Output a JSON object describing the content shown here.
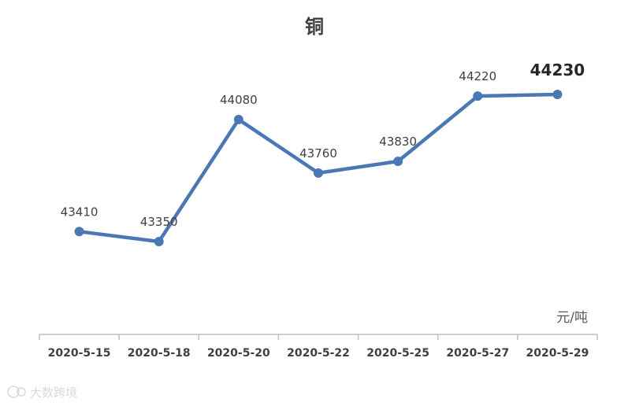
{
  "chart_data": {
    "type": "line",
    "title": "铜",
    "unit_label": "元/吨",
    "categories": [
      "2020-5-15",
      "2020-5-18",
      "2020-5-20",
      "2020-5-22",
      "2020-5-25",
      "2020-5-27",
      "2020-5-29"
    ],
    "values": [
      43410,
      43350,
      44080,
      43760,
      43830,
      44220,
      44230
    ],
    "data_labels": [
      "43410",
      "43350",
      "44080",
      "43760",
      "43830",
      "44220",
      "44230"
    ],
    "highlight_last_label": true,
    "line_color": "#4a78b5",
    "grid": false,
    "legend": "none"
  },
  "watermark": "大数跨境"
}
